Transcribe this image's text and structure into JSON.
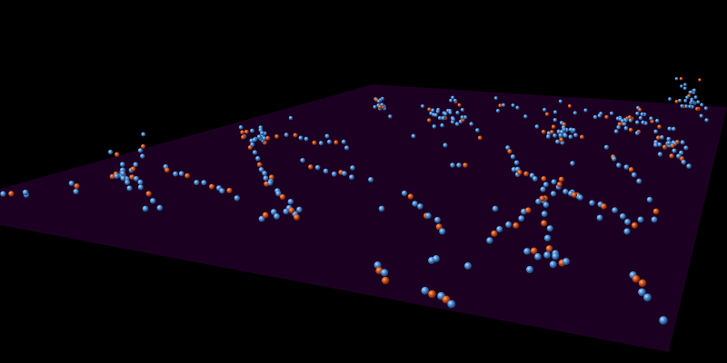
{
  "scene": {
    "background_color": "#000000",
    "plane_color": "#1c0021",
    "particle_colors": {
      "blue": "#4a8fd6",
      "orange": "#d2541e"
    }
  }
}
